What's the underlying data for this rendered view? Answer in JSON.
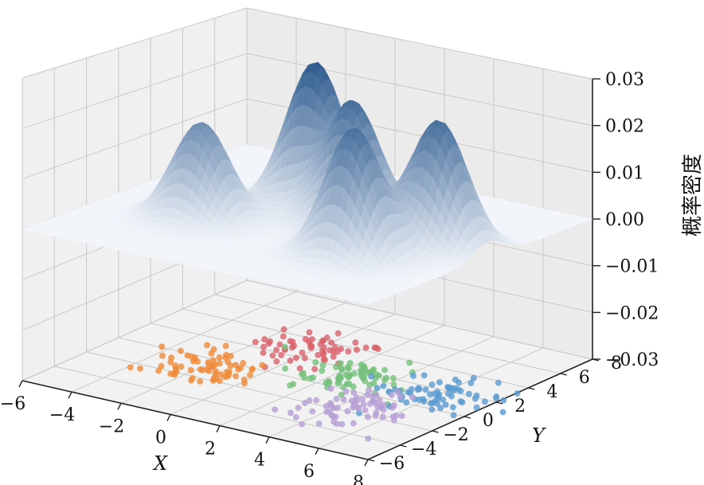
{
  "chart_data": {
    "type": "3d-surface-scatter",
    "title": "",
    "xlabel": "X",
    "ylabel": "Y",
    "zlabel": "概率密度",
    "xlim": [
      -6,
      8
    ],
    "ylim": [
      -6,
      8
    ],
    "zlim": [
      -0.03,
      0.03
    ],
    "x_ticks": [
      "−6",
      "−4",
      "−2",
      "0",
      "2",
      "4",
      "6",
      "8"
    ],
    "y_ticks": [
      "−6",
      "−4",
      "−2",
      "0",
      "2",
      "4",
      "6",
      "8"
    ],
    "z_ticks": [
      "−0.03",
      "−0.02",
      "−0.01",
      "0.00",
      "0.01",
      "0.02",
      "0.03"
    ],
    "grid": true,
    "surface": {
      "description_values": "Gaussian mixture probability density; five peaks",
      "peaks": [
        {
          "x": -2.0,
          "y": -1.0,
          "z": 0.02
        },
        {
          "x": 0.0,
          "y": 3.0,
          "z": 0.03
        },
        {
          "x": 2.5,
          "y": 1.5,
          "z": 0.026
        },
        {
          "x": 4.5,
          "y": -1.5,
          "z": 0.026
        },
        {
          "x": 6.0,
          "y": 1.5,
          "z": 0.026
        }
      ]
    },
    "series": [
      {
        "color": "#d9626b",
        "center": [
          0.0,
          3.0
        ],
        "n": 60
      },
      {
        "color": "#f08b3a",
        "center": [
          -2.0,
          -1.0
        ],
        "n": 70
      },
      {
        "color": "#73c07a",
        "center": [
          2.5,
          1.5
        ],
        "n": 70
      },
      {
        "color": "#5b9bd1",
        "center": [
          6.0,
          1.5
        ],
        "n": 70
      },
      {
        "color": "#b79fd6",
        "center": [
          4.5,
          -1.5
        ],
        "n": 70
      }
    ]
  }
}
